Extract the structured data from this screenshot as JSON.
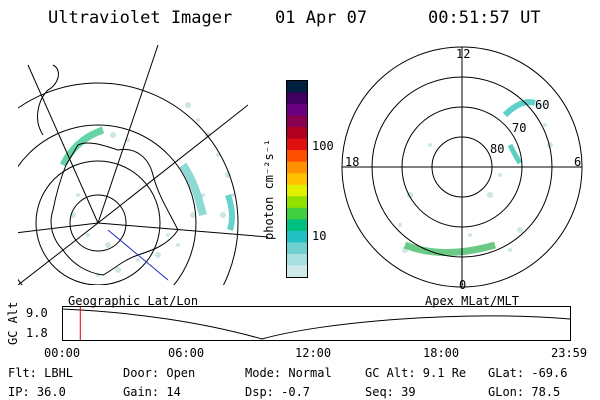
{
  "header": {
    "instrument": "Ultraviolet Imager",
    "date": "01 Apr 07",
    "time": "00:51:57 UT"
  },
  "colorbar": {
    "unit_label": "photon cm⁻²s⁻¹",
    "ticks": [
      "100",
      "10"
    ],
    "colors": [
      "#002040",
      "#400060",
      "#6a0080",
      "#8a0050",
      "#b00020",
      "#e01010",
      "#ff5000",
      "#ff9000",
      "#ffc000",
      "#e0f000",
      "#90e000",
      "#40d040",
      "#00c080",
      "#20c0c0",
      "#70d0d0",
      "#a8e0e0",
      "#d0eaea"
    ]
  },
  "polar_labels": {
    "top": "12",
    "bottom": "0",
    "left": "18",
    "right": "6",
    "rings": [
      "60",
      "70",
      "80"
    ]
  },
  "map_labels": {
    "left": "Geographic Lat/Lon",
    "right": "Apex MLat/MLT"
  },
  "timeline": {
    "ylabel": "GC Alt",
    "yticks": [
      "9.0",
      "1.8"
    ],
    "xticks": [
      "00:00",
      "06:00",
      "12:00",
      "18:00",
      "23:59"
    ],
    "current_time_fraction": 0.036
  },
  "footer": {
    "flt": "Flt: LBHL",
    "door": "Door: Open",
    "mode": "Mode: Normal",
    "gcalt": "GC Alt: 9.1 Re",
    "glat": "GLat: -69.6",
    "ip": "IP: 36.0",
    "gain": "Gain: 14",
    "dsp": "Dsp:    -0.7",
    "seq": "Seq: 39",
    "glon": "GLon:  78.5"
  }
}
